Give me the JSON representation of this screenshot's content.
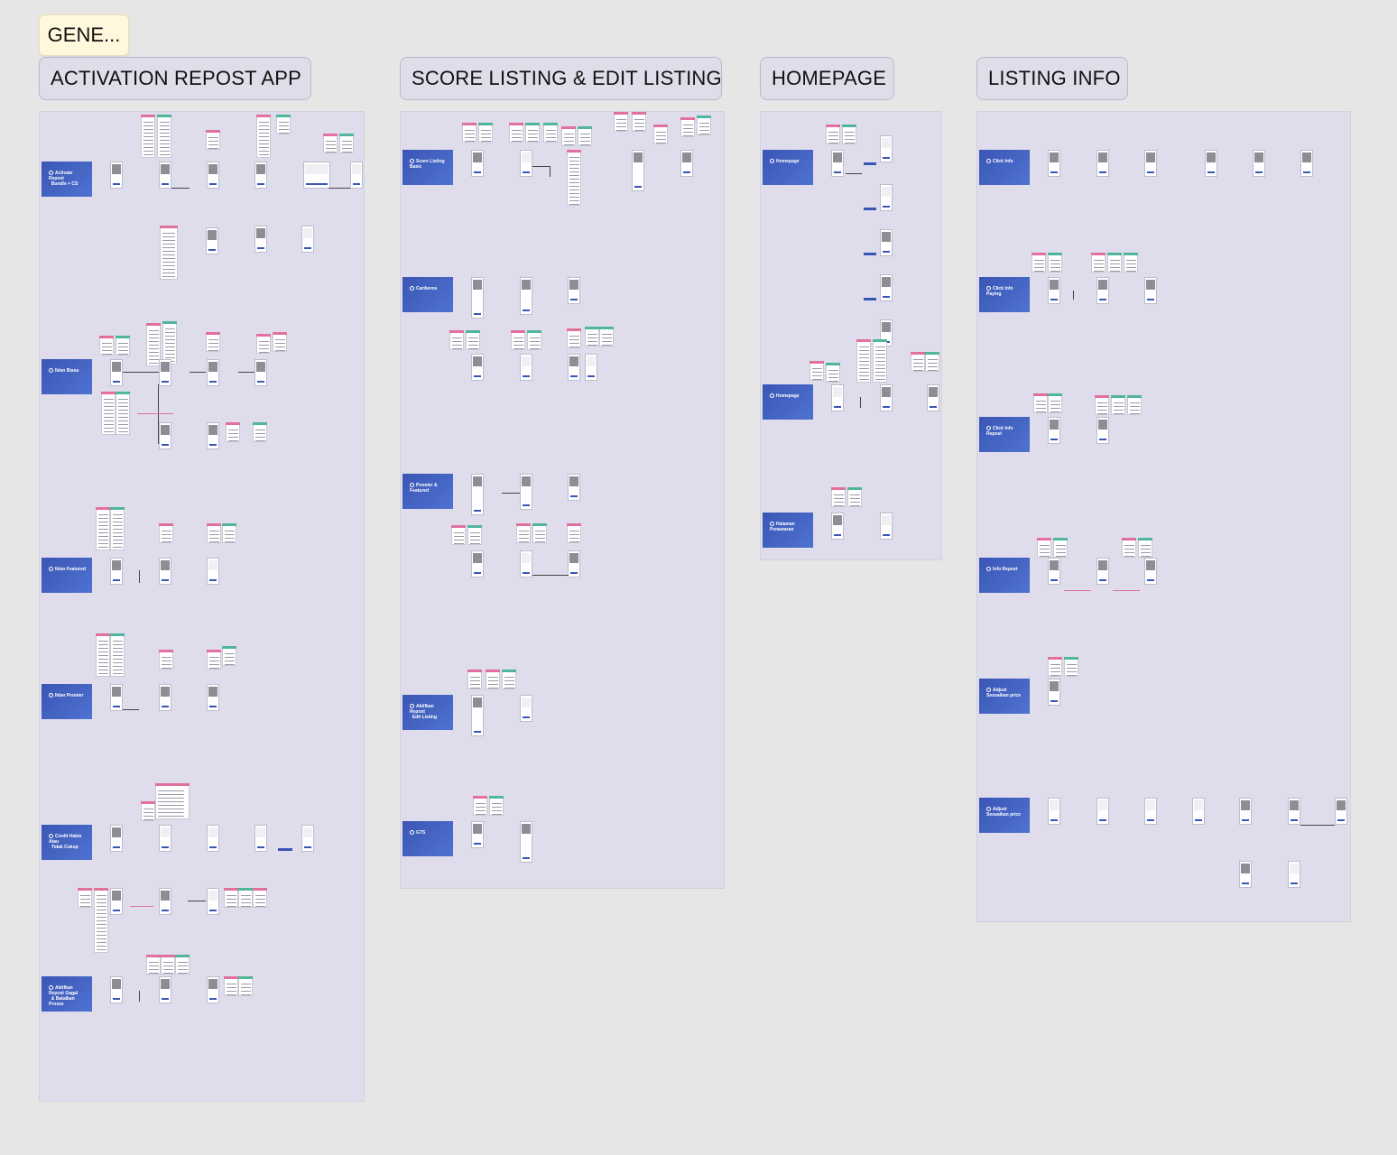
{
  "sticky_note": {
    "text": "GENE..."
  },
  "sections": {
    "activation": {
      "title": "ACTIVATION REPOST APP"
    },
    "score": {
      "title": "SCORE LISTING & EDIT LISTING"
    },
    "homepage": {
      "title": "HOMEPAGE"
    },
    "listing": {
      "title": "LISTING INFO"
    }
  },
  "colors": {
    "canvas_bg": "#e6e6e6",
    "section_bg": "#dfdcec",
    "flow_title_bg": "#3a56b5",
    "sticky_bg": "#fff8dc",
    "note_accent_pink": "#e1709f",
    "note_accent_green": "#4fb59b"
  }
}
